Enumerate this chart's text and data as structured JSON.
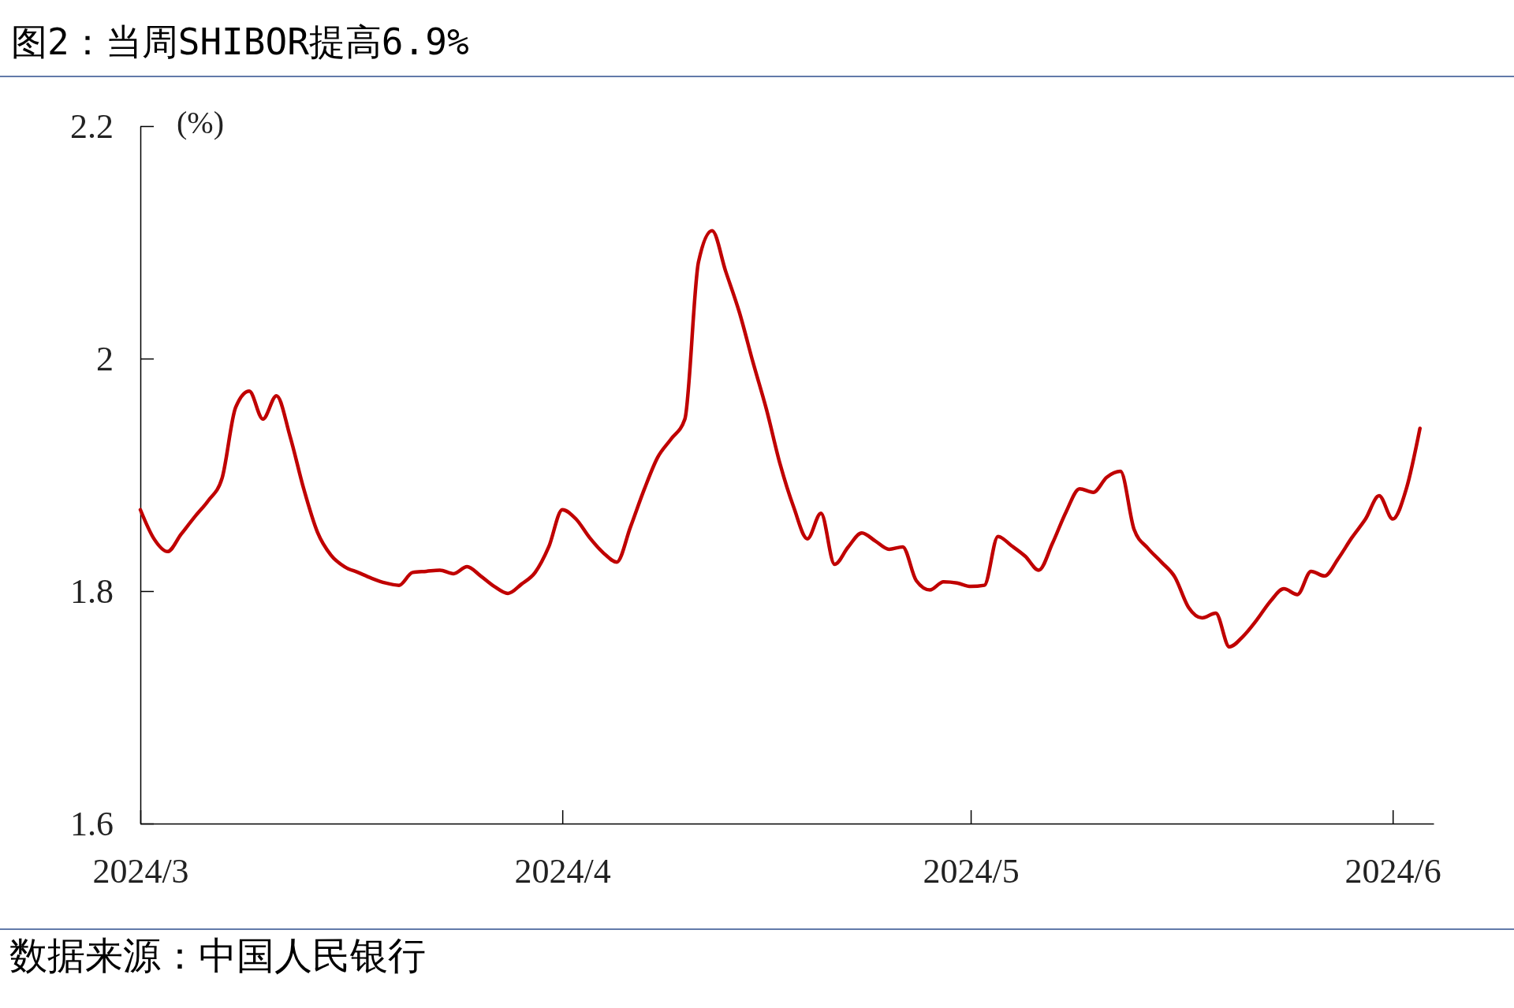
{
  "chart_data": {
    "type": "line",
    "title": "图2：当周SHIBOR提高6.9%",
    "ylabel": "(%)",
    "annotations": [
      "数据来源：中国人民银行"
    ],
    "x": [
      "2024-03-01",
      "2024-03-02",
      "2024-03-03",
      "2024-03-04",
      "2024-03-05",
      "2024-03-06",
      "2024-03-07",
      "2024-03-08",
      "2024-03-09",
      "2024-03-10",
      "2024-03-11",
      "2024-03-12",
      "2024-03-13",
      "2024-03-14",
      "2024-03-15",
      "2024-03-16",
      "2024-03-17",
      "2024-03-18",
      "2024-03-19",
      "2024-03-20",
      "2024-03-21",
      "2024-03-22",
      "2024-03-23",
      "2024-03-24",
      "2024-03-25",
      "2024-03-26",
      "2024-03-27",
      "2024-03-28",
      "2024-03-29",
      "2024-03-30",
      "2024-03-31",
      "2024-04-01",
      "2024-04-02",
      "2024-04-03",
      "2024-04-04",
      "2024-04-05",
      "2024-04-06",
      "2024-04-07",
      "2024-04-08",
      "2024-04-09",
      "2024-04-10",
      "2024-04-11",
      "2024-04-12",
      "2024-04-13",
      "2024-04-14",
      "2024-04-15",
      "2024-04-16",
      "2024-04-17",
      "2024-04-18",
      "2024-04-19",
      "2024-04-20",
      "2024-04-21",
      "2024-04-22",
      "2024-04-23",
      "2024-04-24",
      "2024-04-25",
      "2024-04-26",
      "2024-04-27",
      "2024-04-28",
      "2024-04-29",
      "2024-04-30",
      "2024-05-01",
      "2024-05-02",
      "2024-05-03",
      "2024-05-04",
      "2024-05-05",
      "2024-05-06",
      "2024-05-07",
      "2024-05-08",
      "2024-05-09",
      "2024-05-10",
      "2024-05-11",
      "2024-05-12",
      "2024-05-13",
      "2024-05-14",
      "2024-05-15",
      "2024-05-16",
      "2024-05-17",
      "2024-05-18",
      "2024-05-19",
      "2024-05-20",
      "2024-05-21",
      "2024-05-22",
      "2024-05-23",
      "2024-05-24",
      "2024-05-25",
      "2024-05-26",
      "2024-05-27",
      "2024-05-28",
      "2024-05-29",
      "2024-05-30",
      "2024-05-31",
      "2024-06-01",
      "2024-06-02",
      "2024-06-03"
    ],
    "series": [
      {
        "color": "#c00000",
        "values": [
          1.87,
          1.845,
          1.834,
          1.849,
          1.864,
          1.878,
          1.897,
          1.958,
          1.972,
          1.948,
          1.968,
          1.933,
          1.888,
          1.851,
          1.831,
          1.821,
          1.816,
          1.811,
          1.807,
          1.805,
          1.816,
          1.817,
          1.818,
          1.815,
          1.821,
          1.813,
          1.804,
          1.798,
          1.806,
          1.816,
          1.838,
          1.87,
          1.862,
          1.846,
          1.833,
          1.825,
          1.855,
          1.887,
          1.915,
          1.931,
          1.948,
          2.083,
          2.11,
          2.075,
          2.04,
          1.997,
          1.956,
          1.909,
          1.872,
          1.845,
          1.867,
          1.823,
          1.838,
          1.85,
          1.843,
          1.836,
          1.838,
          1.809,
          1.801,
          1.808,
          1.807,
          1.804,
          1.805,
          1.847,
          1.839,
          1.83,
          1.818,
          1.841,
          1.868,
          1.888,
          1.885,
          1.898,
          1.903,
          1.853,
          1.837,
          1.825,
          1.812,
          1.786,
          1.777,
          1.781,
          1.752,
          1.761,
          1.775,
          1.791,
          1.802,
          1.797,
          1.817,
          1.813,
          1.828,
          1.846,
          1.862,
          1.882,
          1.862,
          1.888,
          1.94
        ]
      }
    ],
    "xlim": [
      "2024-03-01",
      "2024-06-04"
    ],
    "xticks": [
      {
        "value": "2024-03-01",
        "label": "2024/3"
      },
      {
        "value": "2024-04-01",
        "label": "2024/4"
      },
      {
        "value": "2024-05-01",
        "label": "2024/5"
      },
      {
        "value": "2024-06-01",
        "label": "2024/6"
      }
    ],
    "ylim": [
      1.6,
      2.2
    ],
    "yticks": [
      1.6,
      1.8,
      2,
      2.2
    ],
    "line_style": "solid"
  }
}
